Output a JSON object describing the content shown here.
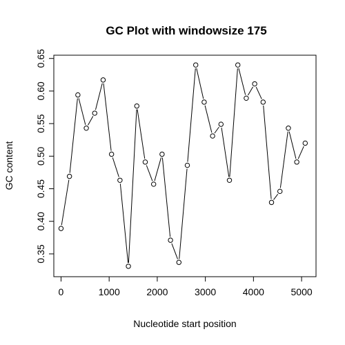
{
  "chart_data": {
    "type": "line",
    "title": "GC Plot with windowsize  175",
    "xlabel": "Nucleotide start position",
    "ylabel": "GC content",
    "xlim": [
      -150,
      5300
    ],
    "ylim": [
      0.315,
      0.655
    ],
    "xticks": [
      0,
      1000,
      2000,
      3000,
      4000,
      5000
    ],
    "xtick_labels": [
      "0",
      "1000",
      "2000",
      "3000",
      "4000",
      "5000"
    ],
    "yticks": [
      0.35,
      0.4,
      0.45,
      0.5,
      0.55,
      0.6,
      0.65
    ],
    "ytick_labels": [
      "0.35",
      "0.40",
      "0.45",
      "0.50",
      "0.55",
      "0.60",
      "0.65"
    ],
    "grid": false,
    "legend": "none",
    "markers": "open-circle",
    "x": [
      0,
      175,
      350,
      525,
      700,
      875,
      1050,
      1225,
      1400,
      1575,
      1750,
      1925,
      2100,
      2275,
      2450,
      2625,
      2800,
      2975,
      3150,
      3325,
      3500,
      3675,
      3850,
      4025,
      4200,
      4375,
      4550,
      4725,
      4900,
      5075
    ],
    "y": [
      0.389,
      0.469,
      0.594,
      0.543,
      0.566,
      0.617,
      0.503,
      0.463,
      0.331,
      0.577,
      0.491,
      0.457,
      0.503,
      0.371,
      0.337,
      0.486,
      0.64,
      0.583,
      0.531,
      0.549,
      0.463,
      0.64,
      0.589,
      0.611,
      0.583,
      0.429,
      0.446,
      0.543,
      0.491,
      0.52
    ]
  }
}
